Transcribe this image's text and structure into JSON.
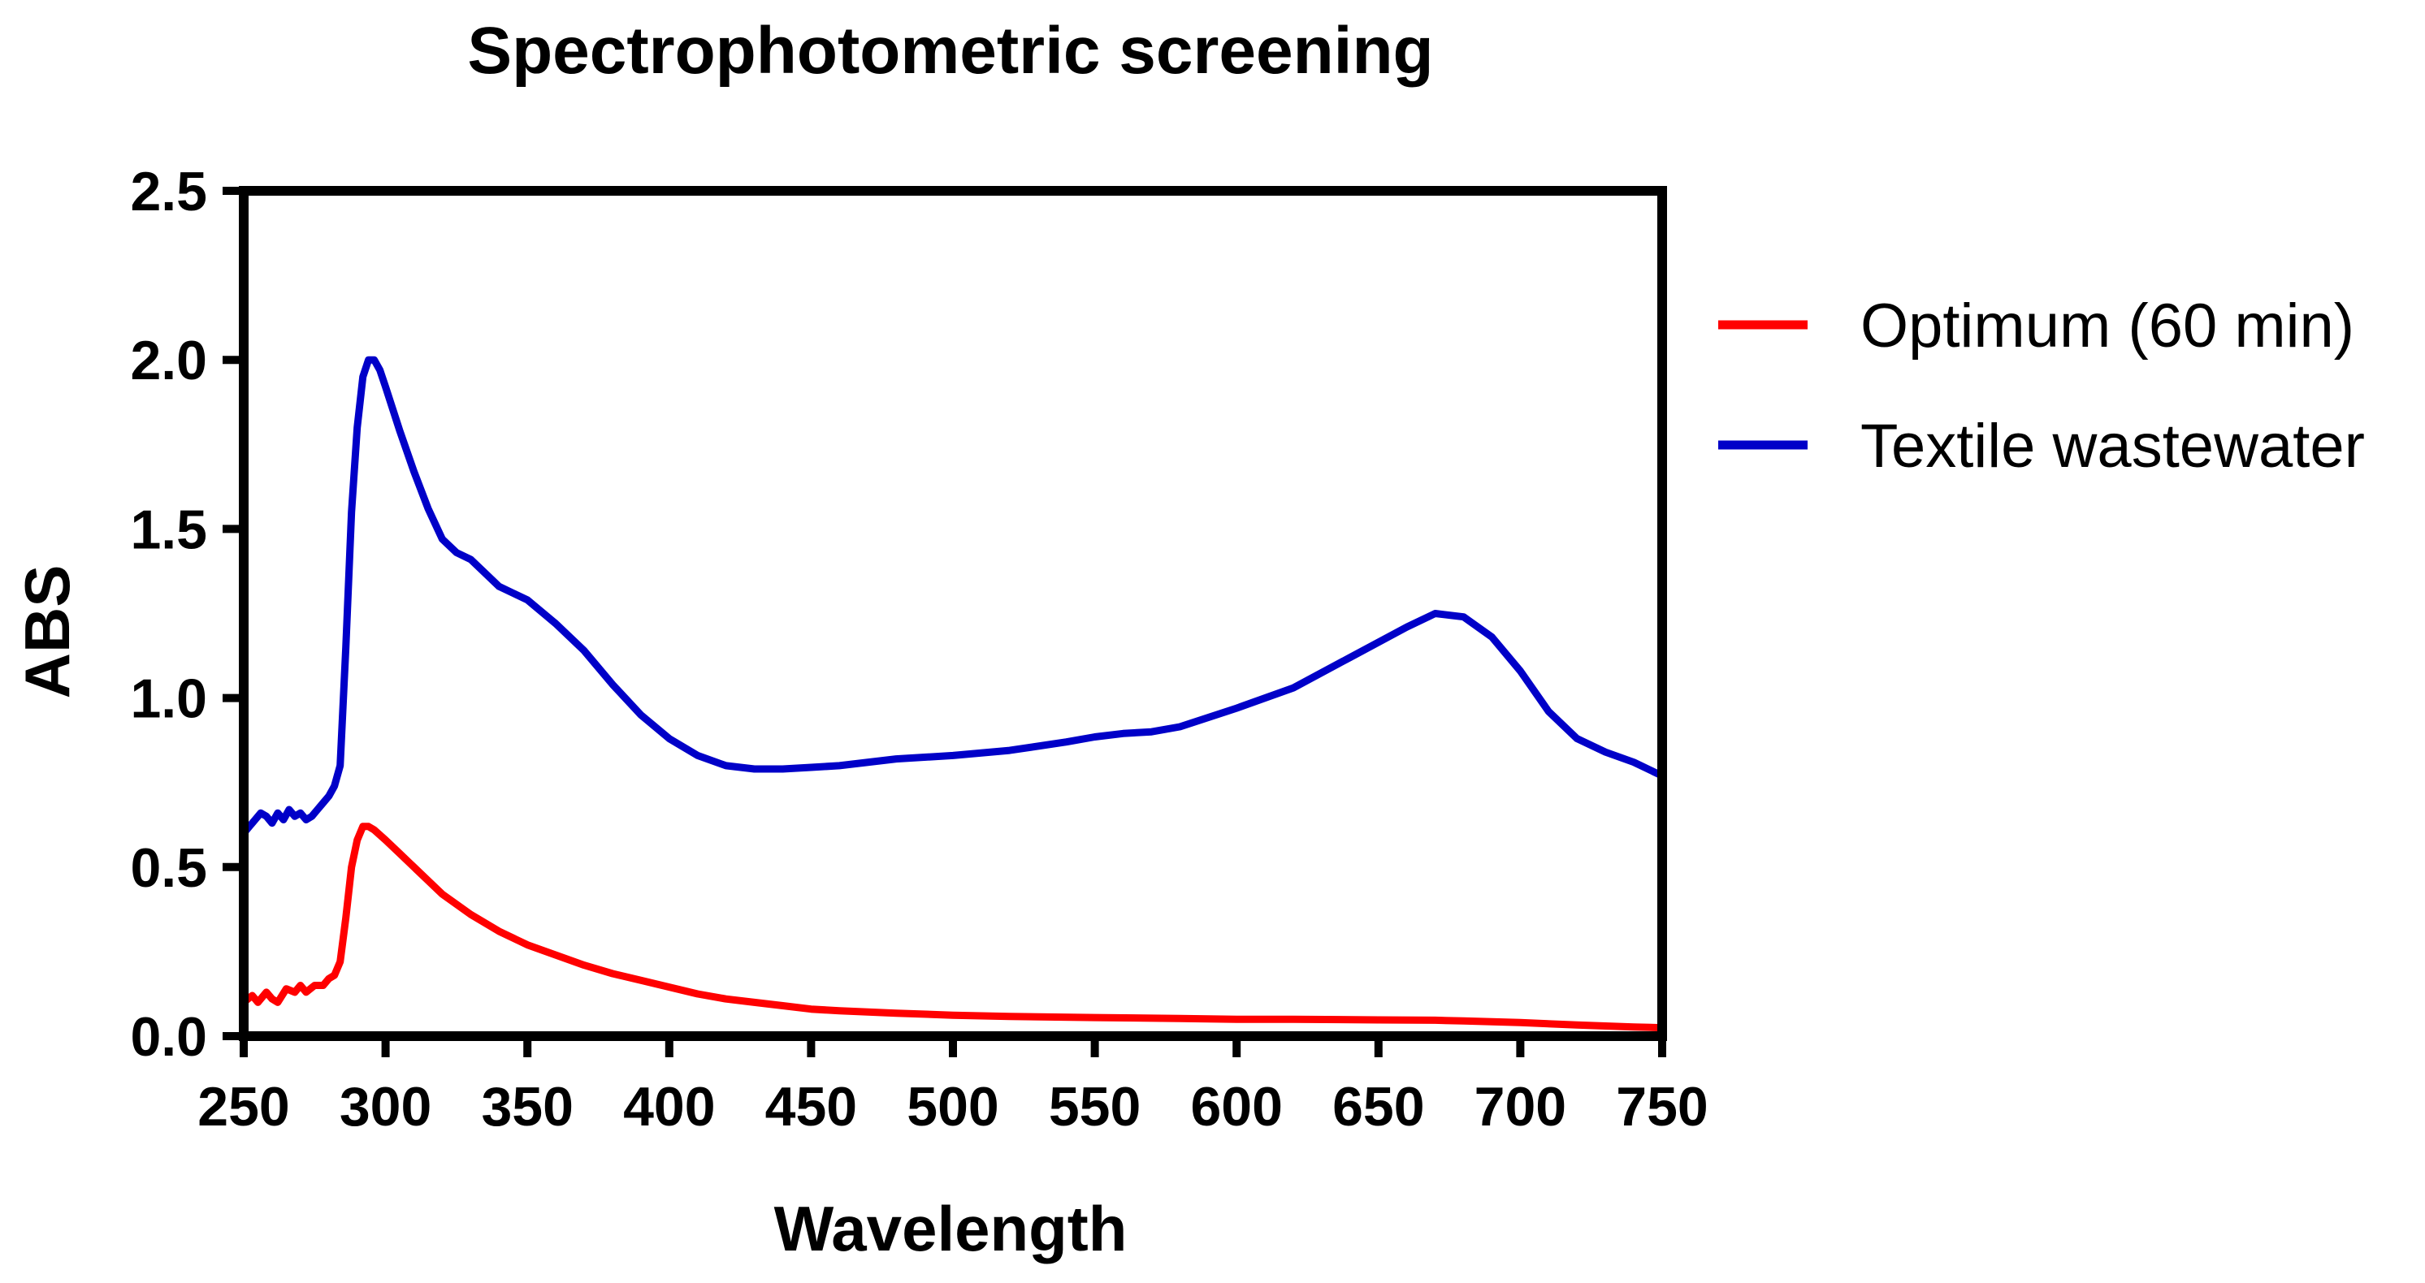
{
  "chart_data": {
    "type": "line",
    "title": "Spectrophotometric screening",
    "xlabel": "Wavelength",
    "ylabel": "ABS",
    "xlim": [
      250,
      750
    ],
    "ylim": [
      0,
      2.5
    ],
    "x_ticks": [
      250,
      300,
      350,
      400,
      450,
      500,
      550,
      600,
      650,
      700,
      750
    ],
    "x_tick_labels": [
      "250",
      "300",
      "350",
      "400",
      "450",
      "500",
      "550",
      "600",
      "650",
      "700",
      "750"
    ],
    "y_ticks": [
      0,
      0.5,
      1.0,
      1.5,
      2.0,
      2.5
    ],
    "y_tick_labels": [
      "0.0",
      "0.5",
      "1.0",
      "1.5",
      "2.0",
      "2.5"
    ],
    "grid": false,
    "legend_position": "right",
    "series": [
      {
        "name": "Optimum (60 min)",
        "color": "#ff0000",
        "x": [
          250,
          253,
          255,
          258,
          260,
          262,
          265,
          268,
          270,
          272,
          275,
          278,
          280,
          282,
          284,
          286,
          288,
          290,
          292,
          294,
          296,
          300,
          305,
          310,
          315,
          320,
          330,
          340,
          350,
          360,
          370,
          380,
          390,
          400,
          410,
          420,
          430,
          440,
          450,
          460,
          480,
          500,
          520,
          550,
          580,
          600,
          620,
          650,
          670,
          680,
          700,
          720,
          740,
          750
        ],
        "values": [
          0.1,
          0.12,
          0.1,
          0.13,
          0.11,
          0.1,
          0.14,
          0.13,
          0.15,
          0.13,
          0.15,
          0.15,
          0.17,
          0.18,
          0.22,
          0.35,
          0.5,
          0.58,
          0.62,
          0.62,
          0.61,
          0.58,
          0.54,
          0.5,
          0.46,
          0.42,
          0.36,
          0.31,
          0.27,
          0.24,
          0.21,
          0.185,
          0.165,
          0.145,
          0.125,
          0.11,
          0.1,
          0.09,
          0.08,
          0.075,
          0.068,
          0.062,
          0.058,
          0.055,
          0.052,
          0.05,
          0.05,
          0.048,
          0.047,
          0.045,
          0.04,
          0.033,
          0.027,
          0.025
        ]
      },
      {
        "name": "Textile wastewater",
        "color": "#0000c8",
        "x": [
          250,
          252,
          254,
          256,
          258,
          260,
          262,
          264,
          266,
          268,
          270,
          272,
          274,
          276,
          278,
          280,
          282,
          284,
          286,
          288,
          290,
          292,
          294,
          296,
          298,
          300,
          305,
          310,
          315,
          320,
          325,
          330,
          335,
          340,
          345,
          350,
          360,
          370,
          380,
          390,
          400,
          410,
          420,
          430,
          440,
          450,
          460,
          480,
          500,
          520,
          540,
          550,
          560,
          570,
          580,
          600,
          620,
          640,
          660,
          670,
          680,
          690,
          700,
          710,
          720,
          730,
          740,
          750
        ],
        "values": [
          0.6,
          0.62,
          0.64,
          0.66,
          0.65,
          0.63,
          0.66,
          0.64,
          0.67,
          0.65,
          0.66,
          0.64,
          0.65,
          0.67,
          0.69,
          0.71,
          0.74,
          0.8,
          1.15,
          1.55,
          1.8,
          1.95,
          2.0,
          2.0,
          1.97,
          1.92,
          1.79,
          1.67,
          1.56,
          1.47,
          1.43,
          1.41,
          1.37,
          1.33,
          1.31,
          1.29,
          1.22,
          1.14,
          1.04,
          0.95,
          0.88,
          0.83,
          0.8,
          0.79,
          0.79,
          0.795,
          0.8,
          0.82,
          0.83,
          0.845,
          0.87,
          0.885,
          0.895,
          0.9,
          0.915,
          0.97,
          1.03,
          1.12,
          1.21,
          1.25,
          1.24,
          1.18,
          1.08,
          0.96,
          0.88,
          0.84,
          0.81,
          0.77
        ]
      }
    ]
  }
}
